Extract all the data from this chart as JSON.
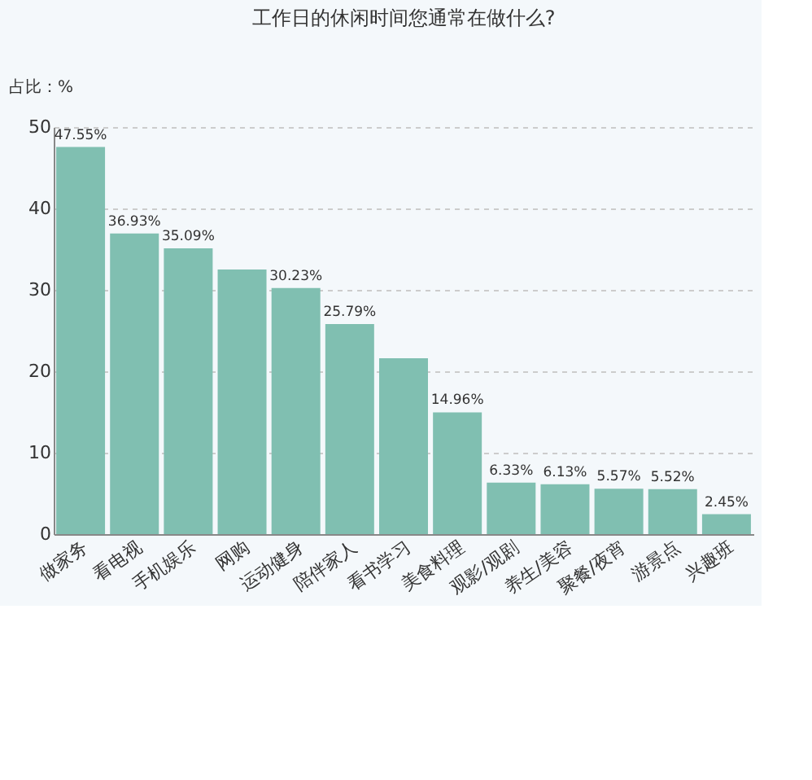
{
  "chart_data": {
    "type": "bar",
    "title": "工作日的休闲时间您通常在做什么?",
    "ylabel": "占比：%",
    "categories": [
      "做家务",
      "看电视",
      "手机娱乐",
      "网购",
      "运动健身",
      "陪伴家人",
      "看书学习",
      "美食料理",
      "观影/观剧",
      "养生/美容",
      "聚餐/夜宵",
      "游景点",
      "兴趣班"
    ],
    "values": [
      47.55,
      36.93,
      35.09,
      32.5,
      30.23,
      25.79,
      21.6,
      14.96,
      6.33,
      6.13,
      5.57,
      5.52,
      2.45
    ],
    "value_labels": [
      "47.55%",
      "36.93%",
      "35.09%",
      null,
      "30.23%",
      "25.79%",
      null,
      "14.96%",
      "6.33%",
      "6.13%",
      "5.57%",
      "5.52%",
      "2.45%"
    ],
    "color": "#80bfb1",
    "ylim": [
      0,
      50
    ],
    "yticks": [
      0,
      10,
      20,
      30,
      40,
      50
    ],
    "grid": "y"
  }
}
